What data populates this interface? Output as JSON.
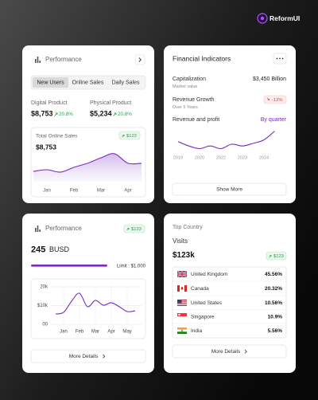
{
  "brand": "ReformUI",
  "performance": {
    "title": "Performance",
    "tabs": [
      "New Users",
      "Online Sales",
      "Daily Sales"
    ],
    "products": [
      {
        "label": "Digital Product",
        "value": "$8,753",
        "change": "20.8%"
      },
      {
        "label": "Physical Product",
        "value": "$5,234",
        "change": "20.8%"
      }
    ],
    "sales": {
      "title": "Total Online Sales",
      "badge": "$123",
      "value": "$8,753",
      "chart": {
        "type": "area",
        "color": "#7b2cbf",
        "categories": [
          null,
          "Jan",
          null,
          "Feb",
          null,
          "Mar",
          null,
          "Apr",
          null
        ],
        "values": [
          23,
          30,
          20,
          40,
          57,
          80,
          97,
          57,
          57
        ]
      }
    }
  },
  "financial": {
    "title": "Financial Indicators",
    "rows": [
      {
        "label": "Capitalization",
        "sub": "Market value",
        "value": "$3,450 Billion"
      },
      {
        "label": "Revenue Growth",
        "sub": "Over 5 Years",
        "value": "-12%"
      }
    ],
    "chart_title": "Revenue and profit",
    "period": "By quarter",
    "chart": {
      "type": "line",
      "color": "#7b2cbf",
      "categories": [
        "2019",
        null,
        "2020",
        null,
        "2022",
        null,
        "2023",
        null,
        "2024",
        null
      ],
      "values": [
        13,
        8,
        5,
        8,
        5,
        10,
        8,
        11,
        15,
        25
      ]
    },
    "button": "Show More"
  },
  "balance": {
    "title": "Performance",
    "badge": "$123",
    "amount": "245",
    "currency": "BUSD",
    "limit": "Limit : $1,000",
    "chart": {
      "type": "line",
      "color": "#7b2cbf",
      "categories": [
        null,
        "Jan",
        null,
        "Feb",
        null,
        "Mar",
        null,
        "Apr",
        null,
        "May",
        null
      ],
      "values": [
        5500,
        6400,
        12300,
        16600,
        9400,
        12800,
        10200,
        11500,
        9400,
        6800,
        7200
      ],
      "ylim": [
        0,
        20000
      ],
      "yticks": [
        {
          "value": 0,
          "label": "00"
        },
        {
          "value": 10000,
          "label": "$10k"
        },
        {
          "value": 20000,
          "label": "20k"
        }
      ],
      "grid": true
    },
    "button": "More Details"
  },
  "countries": {
    "title": "Top Country",
    "metric": "Visits",
    "total": "$123k",
    "badge": "$123",
    "rows": [
      {
        "name": "United Kingdom",
        "share": "45.56%"
      },
      {
        "name": "Canada",
        "share": "20.32%"
      },
      {
        "name": "United States",
        "share": "10.56%"
      },
      {
        "name": "Singapore",
        "share": "10.9%"
      },
      {
        "name": "India",
        "share": "5.56%"
      }
    ],
    "button": "More Details"
  }
}
